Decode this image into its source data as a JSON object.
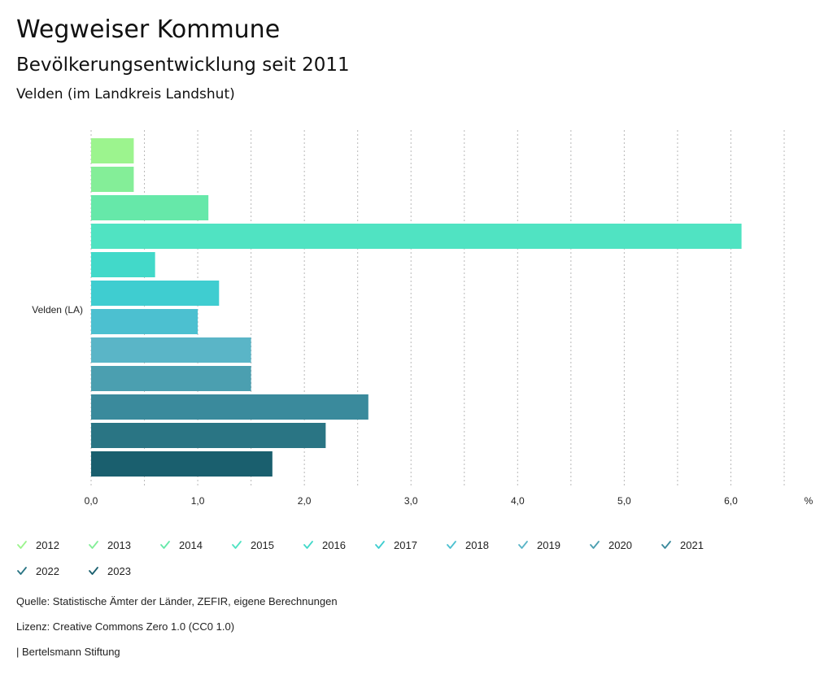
{
  "header": {
    "title": "Wegweiser Kommune",
    "subtitle": "Bevölkerungsentwicklung seit 2011",
    "region": "Velden (im Landkreis Landshut)"
  },
  "chart_data": {
    "type": "bar",
    "orientation": "horizontal",
    "category": "Velden (LA)",
    "unit_label": "%",
    "xlim": [
      0,
      6.5
    ],
    "ticks": [
      0,
      1,
      2,
      3,
      4,
      5,
      6
    ],
    "tick_labels": [
      "0,0",
      "1,0",
      "2,0",
      "3,0",
      "4,0",
      "5,0",
      "6,0"
    ],
    "grid": true,
    "series": [
      {
        "name": "2012",
        "value": 0.4,
        "color": "#9cf48e"
      },
      {
        "name": "2013",
        "value": 0.4,
        "color": "#84ee98"
      },
      {
        "name": "2014",
        "value": 1.1,
        "color": "#66e8a9"
      },
      {
        "name": "2015",
        "value": 6.1,
        "color": "#50e3c2"
      },
      {
        "name": "2016",
        "value": 0.6,
        "color": "#42d9c9"
      },
      {
        "name": "2017",
        "value": 1.2,
        "color": "#3fcdd0"
      },
      {
        "name": "2018",
        "value": 1.0,
        "color": "#4cc0d0"
      },
      {
        "name": "2019",
        "value": 1.5,
        "color": "#5ab5c7"
      },
      {
        "name": "2020",
        "value": 1.5,
        "color": "#4b9fb0"
      },
      {
        "name": "2021",
        "value": 2.6,
        "color": "#3a8a9c"
      },
      {
        "name": "2022",
        "value": 2.2,
        "color": "#2a7584"
      },
      {
        "name": "2023",
        "value": 1.7,
        "color": "#1a5f6e"
      }
    ]
  },
  "legend": {
    "items": [
      "2012",
      "2013",
      "2014",
      "2015",
      "2016",
      "2017",
      "2018",
      "2019",
      "2020",
      "2021",
      "2022",
      "2023"
    ]
  },
  "footer": {
    "source": "Quelle: Statistische Ämter der Länder, ZEFIR, eigene Berechnungen",
    "license": "Lizenz: Creative Commons Zero 1.0 (CC0 1.0)",
    "publisher": "| Bertelsmann Stiftung"
  }
}
